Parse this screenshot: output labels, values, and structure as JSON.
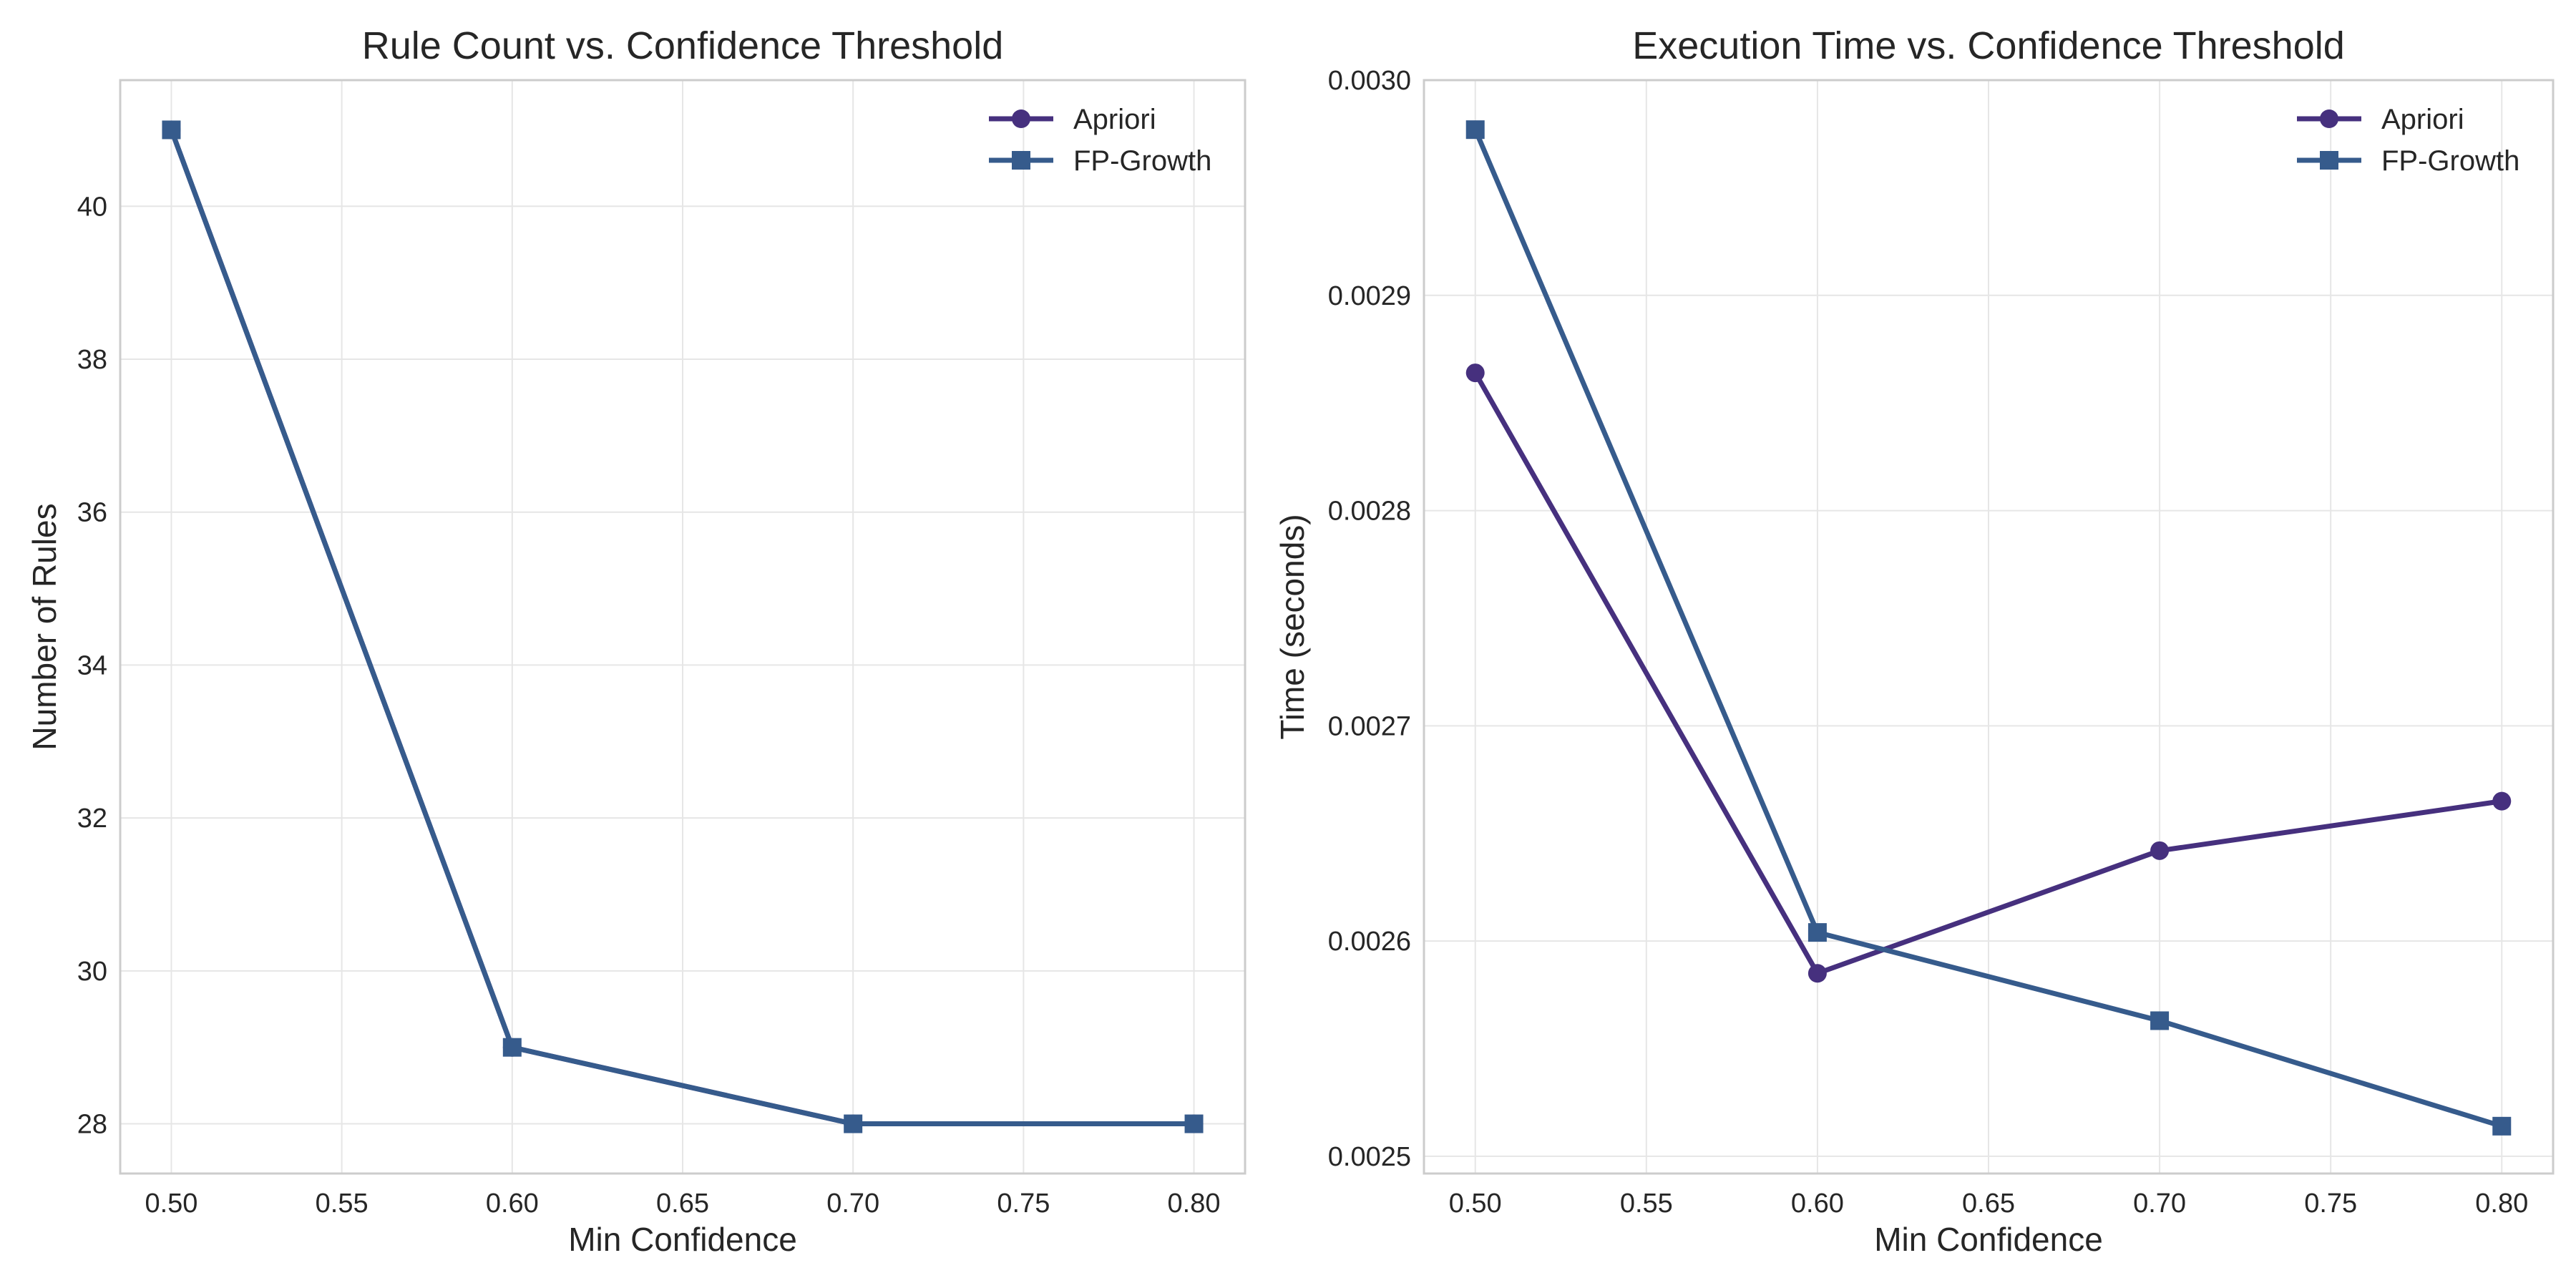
{
  "chart_data": [
    {
      "type": "line",
      "title": "Rule Count vs. Confidence Threshold",
      "xlabel": "Min Confidence",
      "ylabel": "Number of Rules",
      "x": [
        0.5,
        0.6,
        0.7,
        0.8
      ],
      "xlim": [
        0.485,
        0.815
      ],
      "ylim": [
        27.35,
        41.65
      ],
      "xticks": [
        0.5,
        0.55,
        0.6,
        0.65,
        0.7,
        0.75,
        0.8
      ],
      "xtick_labels": [
        "0.50",
        "0.55",
        "0.60",
        "0.65",
        "0.70",
        "0.75",
        "0.80"
      ],
      "yticks": [
        28,
        30,
        32,
        34,
        36,
        38,
        40
      ],
      "ytick_labels": [
        "28",
        "30",
        "32",
        "34",
        "36",
        "38",
        "40"
      ],
      "grid": true,
      "legend": "upper-right",
      "series": [
        {
          "name": "Apriori",
          "marker": "circle",
          "color": "#46307e",
          "values": [
            41,
            29,
            28,
            28
          ]
        },
        {
          "name": "FP-Growth",
          "marker": "square",
          "color": "#365b8c",
          "values": [
            41,
            29,
            28,
            28
          ]
        }
      ]
    },
    {
      "type": "line",
      "title": "Execution Time vs. Confidence Threshold",
      "xlabel": "Min Confidence",
      "ylabel": "Time (seconds)",
      "x": [
        0.5,
        0.6,
        0.7,
        0.8
      ],
      "xlim": [
        0.485,
        0.815
      ],
      "ylim": [
        0.002492,
        0.003
      ],
      "xticks": [
        0.5,
        0.55,
        0.6,
        0.65,
        0.7,
        0.75,
        0.8
      ],
      "xtick_labels": [
        "0.50",
        "0.55",
        "0.60",
        "0.65",
        "0.70",
        "0.75",
        "0.80"
      ],
      "yticks": [
        0.0025,
        0.0026,
        0.0027,
        0.0028,
        0.0029,
        0.003
      ],
      "ytick_labels": [
        "0.0025",
        "0.0026",
        "0.0027",
        "0.0028",
        "0.0029",
        "0.0030"
      ],
      "grid": true,
      "legend": "upper-right",
      "series": [
        {
          "name": "Apriori",
          "marker": "circle",
          "color": "#46307e",
          "values": [
            0.002864,
            0.002585,
            0.002642,
            0.002665
          ]
        },
        {
          "name": "FP-Growth",
          "marker": "square",
          "color": "#365b8c",
          "values": [
            0.002977,
            0.002604,
            0.002563,
            0.002514
          ]
        }
      ]
    }
  ]
}
